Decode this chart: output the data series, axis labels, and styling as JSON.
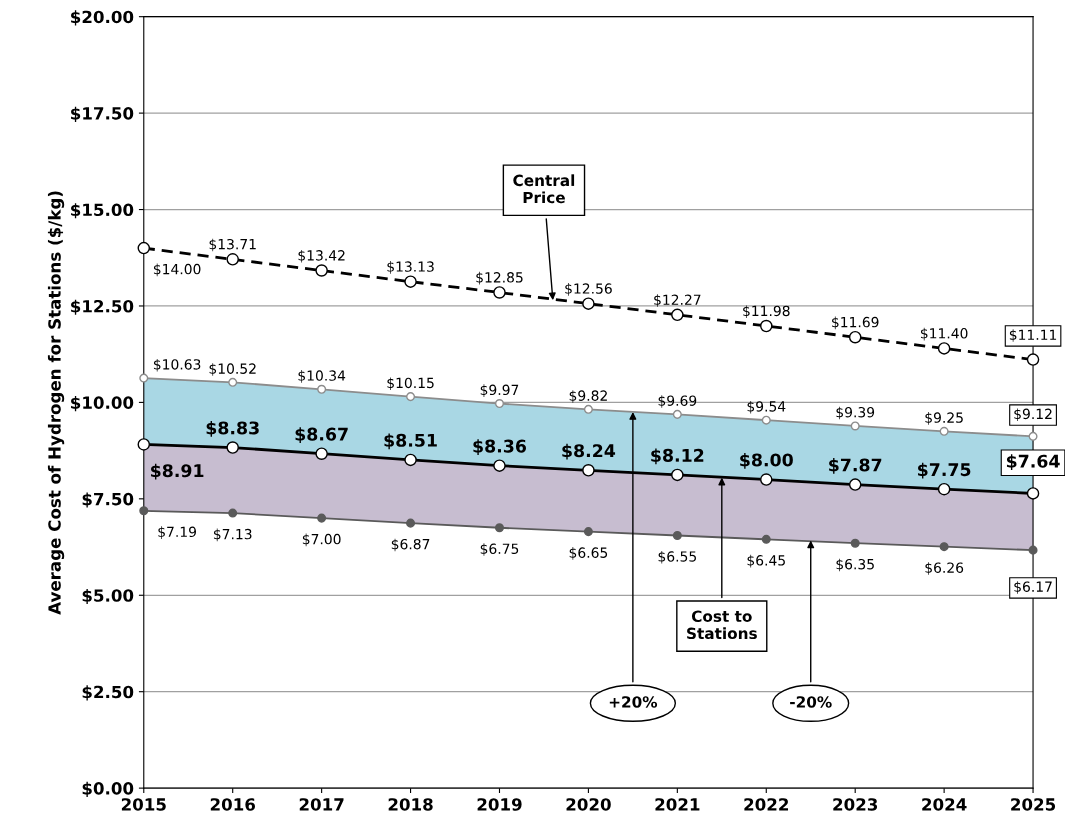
{
  "chart_data": {
    "type": "line",
    "ylabel": "Average Cost of Hydrogen for Stations ($/kg)",
    "x": [
      2015,
      2016,
      2017,
      2018,
      2019,
      2020,
      2021,
      2022,
      2023,
      2024,
      2025
    ],
    "xlim": [
      2015,
      2025
    ],
    "xticks": [
      2015,
      2016,
      2017,
      2018,
      2019,
      2020,
      2021,
      2022,
      2023,
      2024,
      2025
    ],
    "ylim": [
      0,
      20
    ],
    "yticks": [
      {
        "value": 0,
        "label": "$0.00"
      },
      {
        "value": 2.5,
        "label": "$2.50"
      },
      {
        "value": 5,
        "label": "$5.00"
      },
      {
        "value": 7.5,
        "label": "$7.50"
      },
      {
        "value": 10,
        "label": "$10.00"
      },
      {
        "value": 12.5,
        "label": "$12.50"
      },
      {
        "value": 15,
        "label": "$15.00"
      },
      {
        "value": 17.5,
        "label": "$17.50"
      },
      {
        "value": 20,
        "label": "$20.00"
      }
    ],
    "grid": "y",
    "series": [
      {
        "color": "#000000",
        "marker": "circle",
        "line_style": "dashed",
        "values": [
          14.0,
          13.71,
          13.42,
          13.13,
          12.85,
          12.56,
          12.27,
          11.98,
          11.69,
          11.4,
          11.11
        ],
        "value_labels": [
          "$14.00",
          "$13.71",
          "$13.42",
          "$13.13",
          "$12.85",
          "$12.56",
          "$12.27",
          "$11.98",
          "$11.69",
          "$11.40",
          "$11.11"
        ]
      },
      {
        "type": "area",
        "color": "#a9d7e4",
        "marker": "circle",
        "values": [
          10.63,
          10.52,
          10.34,
          10.15,
          9.97,
          9.82,
          9.69,
          9.54,
          9.39,
          9.25,
          9.12
        ],
        "value_labels": [
          "$10.63",
          "$10.52",
          "$10.34",
          "$10.15",
          "$9.97",
          "$9.82",
          "$9.69",
          "$9.54",
          "$9.39",
          "$9.25",
          "$9.12"
        ]
      },
      {
        "type": "area",
        "color": "#c7bdd0",
        "marker": "circle",
        "values": [
          8.91,
          8.83,
          8.67,
          8.51,
          8.36,
          8.24,
          8.12,
          8.0,
          7.87,
          7.75,
          7.64
        ],
        "value_labels": [
          "$8.91",
          "$8.83",
          "$8.67",
          "$8.51",
          "$8.36",
          "$8.24",
          "$8.12",
          "$8.00",
          "$7.87",
          "$7.75",
          "$7.64"
        ]
      },
      {
        "color": "#5a5a5a",
        "marker": "circle",
        "line_style": "solid",
        "values": [
          7.19,
          7.13,
          7.0,
          6.87,
          6.75,
          6.65,
          6.55,
          6.45,
          6.35,
          6.26,
          6.17
        ],
        "value_labels": [
          "$7.19",
          "$7.13",
          "$7.00",
          "$6.87",
          "$6.75",
          "$6.65",
          "$6.55",
          "$6.45",
          "$6.35",
          "$6.26",
          "$6.17"
        ]
      }
    ],
    "annotations": [
      {
        "text": "Central\nPrice",
        "x": 2019.6,
        "y": 12.65
      },
      {
        "text": "Cost to\nStations",
        "x": 2021.5,
        "y": 8.05
      },
      {
        "text": "+20%",
        "x": 2020.5,
        "y": 9.75
      },
      {
        "text": "-20%",
        "x": 2022.5,
        "y": 6.42
      }
    ],
    "legend": false
  }
}
